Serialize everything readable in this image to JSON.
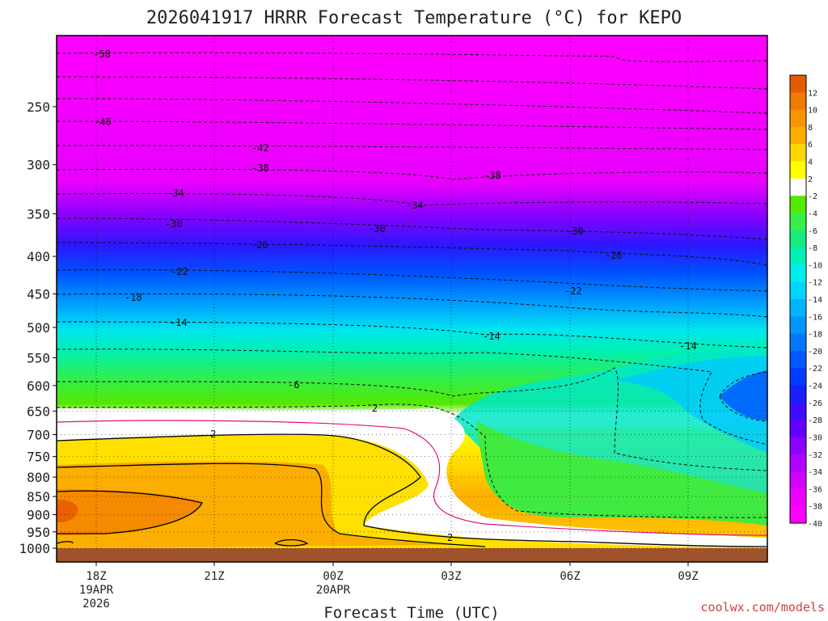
{
  "chart_data": {
    "type": "heatmap",
    "title": "2026041917 HRRR Forecast Temperature (°C) for KEPO",
    "xlabel": "Forecast Time (UTC)",
    "ylabel": "",
    "credit": "coolwx.com/models",
    "x_ticks": [
      {
        "lines": [
          "18Z",
          "19APR",
          "2026"
        ]
      },
      {
        "lines": [
          "21Z"
        ]
      },
      {
        "lines": [
          "00Z",
          "20APR"
        ]
      },
      {
        "lines": [
          "03Z"
        ]
      },
      {
        "lines": [
          "06Z"
        ]
      },
      {
        "lines": [
          "09Z"
        ]
      }
    ],
    "y_ticks": [
      "250",
      "300",
      "350",
      "400",
      "450",
      "500",
      "550",
      "600",
      "650",
      "700",
      "750",
      "800",
      "850",
      "900",
      "950",
      "1000"
    ],
    "y_range_hpa": [
      200,
      1020
    ],
    "y_scale": "log-pressure",
    "grid": true,
    "colorbar_ticks": [
      "12",
      "10",
      "8",
      "6",
      "4",
      "2",
      "-2",
      "-4",
      "-6",
      "-8",
      "-10",
      "-12",
      "-14",
      "-16",
      "-18",
      "-20",
      "-22",
      "-24",
      "-26",
      "-28",
      "-30",
      "-32",
      "-34",
      "-36",
      "-38",
      "-40"
    ],
    "colorbar_colors": [
      "#e65a00",
      "#f17a00",
      "#f79500",
      "#fbae00",
      "#ffd700",
      "#ffff00",
      "#ffffff",
      "#55e800",
      "#35ef4a",
      "#18ea80",
      "#00f0b8",
      "#00eeee",
      "#00d4ff",
      "#00b5ff",
      "#0096ff",
      "#0076ff",
      "#0058ff",
      "#003cff",
      "#1820ff",
      "#3c0dff",
      "#6400ff",
      "#8c00ff",
      "#b000ff",
      "#d000ff",
      "#ee00ff",
      "#ff00ff"
    ],
    "surface_color": "#a0522d",
    "contour_labels": [
      "-58",
      "-46",
      "-42",
      "-38",
      "-38",
      "-34",
      "-34",
      "-30",
      "-30",
      "-30",
      "-26",
      "-26",
      "-22",
      "-22",
      "-18",
      "-14",
      "-14",
      "-14",
      "-6",
      "2",
      "2",
      "2"
    ]
  }
}
